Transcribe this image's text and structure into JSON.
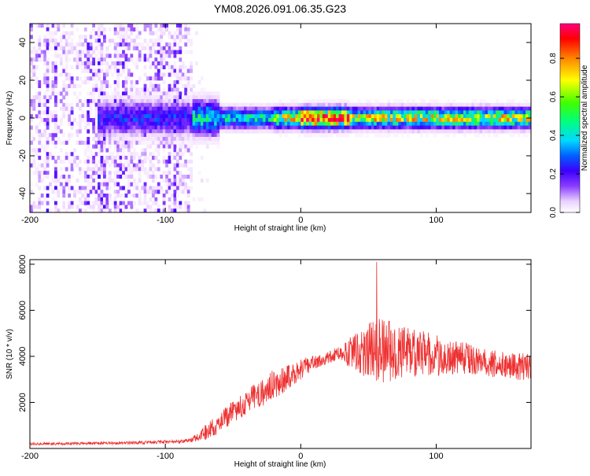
{
  "title": "YM08.2026.091.06.35.G23",
  "chart_data": [
    {
      "type": "heatmap",
      "xlabel": "Height of straight line (km)",
      "ylabel": "Frequency (Hz)",
      "xlim": [
        -200,
        170
      ],
      "ylim": [
        -50,
        50
      ],
      "x_ticks": [
        -200,
        -100,
        0,
        100
      ],
      "y_ticks": [
        -40,
        -20,
        0,
        20,
        40
      ],
      "colorbar": {
        "label": "Normalized spectral amplitude",
        "range": [
          0,
          0.98
        ],
        "ticks": [
          0.0,
          0.2,
          0.4,
          0.6,
          0.8
        ],
        "colormap": [
          "#ffffff",
          "#f0d8ff",
          "#8a3cff",
          "#3c00ff",
          "#0070ff",
          "#00e0ff",
          "#20ff20",
          "#ffff00",
          "#ff8000",
          "#ff0000",
          "#ff0080"
        ]
      },
      "features": {
        "noise_region_x": [
          -200,
          -80
        ],
        "signal_band_center_hz": 0,
        "signal_peak_x": [
          0,
          30
        ]
      }
    },
    {
      "type": "line",
      "xlabel": "Height of straight line (km)",
      "ylabel": "SNR (10 * v/v)",
      "xlim": [
        -200,
        170
      ],
      "ylim": [
        0,
        8200
      ],
      "x_ticks": [
        -200,
        -100,
        0,
        100
      ],
      "y_ticks": [
        2000,
        4000,
        6000,
        8000
      ],
      "line_color": "#ee3030",
      "envelope_x": [
        -200,
        -160,
        -120,
        -90,
        -80,
        -70,
        -60,
        -50,
        -40,
        -30,
        -20,
        -10,
        0,
        10,
        20,
        30,
        40,
        50,
        60,
        70,
        80,
        90,
        100,
        110,
        120,
        130,
        140,
        150,
        160,
        170
      ],
      "envelope_y": [
        200,
        220,
        250,
        300,
        380,
        700,
        1100,
        1600,
        2000,
        2350,
        2800,
        3100,
        3450,
        3750,
        3950,
        4100,
        4200,
        4300,
        4300,
        4200,
        4150,
        4100,
        4050,
        4000,
        3950,
        3800,
        3700,
        3650,
        3550,
        3500
      ],
      "envelope_spread": [
        60,
        60,
        70,
        80,
        100,
        350,
        450,
        500,
        550,
        600,
        650,
        600,
        450,
        300,
        250,
        400,
        800,
        1300,
        1500,
        1300,
        1100,
        1000,
        900,
        800,
        700,
        600,
        600,
        550,
        600,
        600
      ],
      "peak_value": 8100,
      "peak_x": 56
    }
  ]
}
